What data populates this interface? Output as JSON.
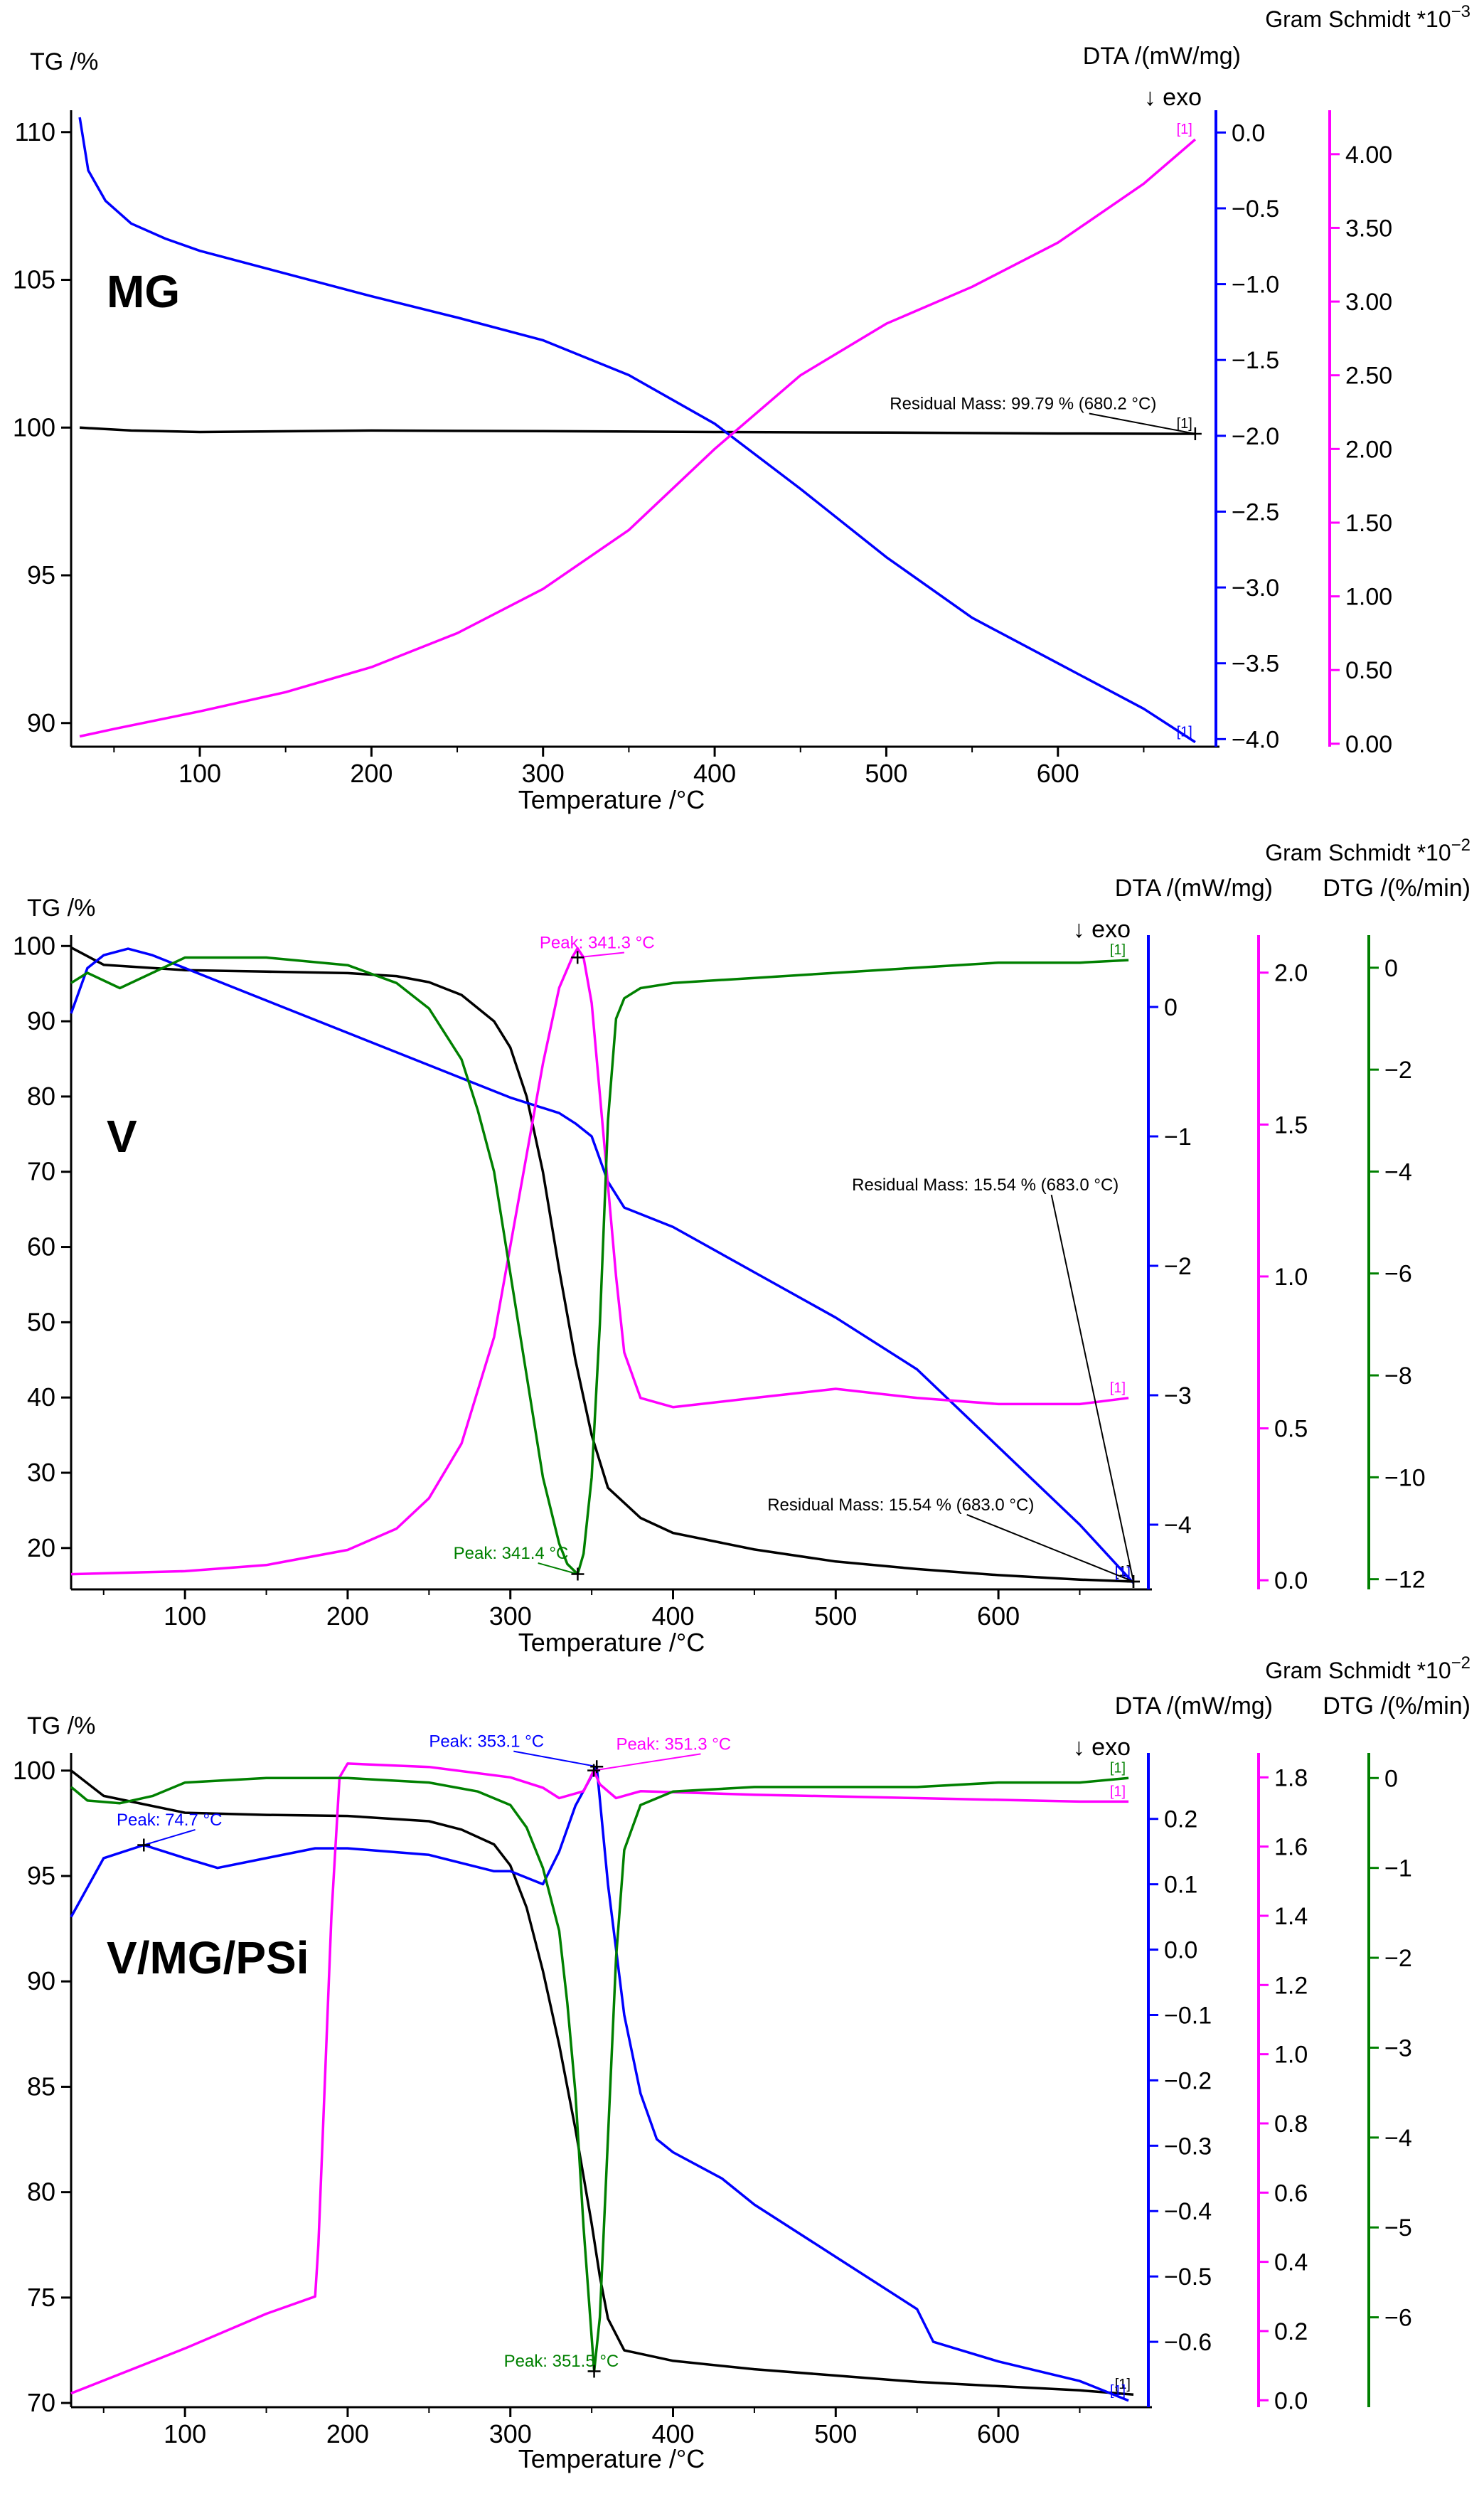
{
  "chart_data": [
    {
      "type": "line",
      "name": "MG",
      "sample_label": "MG",
      "xlabel": "Temperature /°C",
      "xlim": [
        25,
        690
      ],
      "xticks": [
        100,
        200,
        300,
        400,
        500,
        600
      ],
      "gs_header": "Gram Schmidt *10",
      "gs_exp": "−3",
      "exo_label": "↓ exo",
      "axes": [
        {
          "id": "tg",
          "label": "TG /%",
          "side": "left",
          "color": "#000000",
          "lim": [
            89.2,
            110.5
          ],
          "ticks": [
            90,
            95,
            100,
            105,
            110
          ],
          "decimals": 0
        },
        {
          "id": "dta",
          "label": "DTA /(mW/mg)",
          "side": "right",
          "color": "#0000ff",
          "lim": [
            -4.05,
            0.1
          ],
          "ticks": [
            0.0,
            -0.5,
            -1.0,
            -1.5,
            -2.0,
            -2.5,
            -3.0,
            -3.5,
            -4.0
          ],
          "decimals": 1
        },
        {
          "id": "gs",
          "label": "",
          "side": "right",
          "color": "#ff00ff",
          "lim": [
            -0.02,
            4.25
          ],
          "ticks": [
            0,
            0.5,
            1.0,
            1.5,
            2.0,
            2.5,
            3.0,
            3.5,
            4.0
          ],
          "decimals": 2
        }
      ],
      "series": [
        {
          "name": "TG",
          "axis": "tg",
          "color": "#000000",
          "x": [
            30,
            60,
            100,
            200,
            300,
            400,
            500,
            600,
            680
          ],
          "y": [
            100.0,
            99.9,
            99.85,
            99.9,
            99.88,
            99.85,
            99.83,
            99.8,
            99.79
          ]
        },
        {
          "name": "DTA",
          "axis": "dta",
          "color": "#0000ff",
          "x": [
            30,
            35,
            45,
            60,
            80,
            100,
            150,
            200,
            250,
            300,
            350,
            400,
            450,
            500,
            550,
            600,
            650,
            680
          ],
          "y": [
            0.1,
            -0.25,
            -0.45,
            -0.6,
            -0.7,
            -0.78,
            -0.93,
            -1.08,
            -1.22,
            -1.37,
            -1.6,
            -1.92,
            -2.35,
            -2.8,
            -3.2,
            -3.5,
            -3.8,
            -4.02
          ]
        },
        {
          "name": "Gram Schmidt",
          "axis": "gs",
          "color": "#ff00ff",
          "x": [
            30,
            50,
            100,
            150,
            200,
            250,
            300,
            350,
            400,
            450,
            500,
            550,
            600,
            650,
            680
          ],
          "y": [
            0.05,
            0.1,
            0.22,
            0.35,
            0.52,
            0.75,
            1.05,
            1.45,
            2.0,
            2.5,
            2.85,
            3.1,
            3.4,
            3.8,
            4.1
          ]
        }
      ],
      "annotations": [
        {
          "text": "Residual Mass: 99.79 % (680.2 °C)",
          "color": "#000000",
          "x": 680,
          "axis": "tg",
          "y": 99.79,
          "tx": 502,
          "ty": 100.62
        }
      ]
    },
    {
      "type": "line",
      "name": "V",
      "sample_label": "V",
      "xlabel": "Temperature /°C",
      "xlim": [
        30,
        690
      ],
      "xticks": [
        100,
        200,
        300,
        400,
        500,
        600
      ],
      "gs_header": "Gram Schmidt *10",
      "gs_exp": "−2",
      "dtg_header": "DTG /(%/min)",
      "exo_label": "↓ exo",
      "axes": [
        {
          "id": "tg",
          "label": "TG /%",
          "side": "left",
          "color": "#000000",
          "lim": [
            14.5,
            100.5
          ],
          "ticks": [
            20,
            30,
            40,
            50,
            60,
            70,
            80,
            90,
            100
          ],
          "decimals": 0
        },
        {
          "id": "dta",
          "label": "DTA /(mW/mg)",
          "side": "right",
          "color": "#0000ff",
          "lim": [
            -4.5,
            0.5
          ],
          "ticks": [
            0,
            -1,
            -2,
            -3,
            -4
          ],
          "decimals": 0
        },
        {
          "id": "gs",
          "label": "",
          "side": "right",
          "color": "#ff00ff",
          "lim": [
            -0.03,
            2.1
          ],
          "ticks": [
            0,
            0.5,
            1.0,
            1.5,
            2.0
          ],
          "decimals": 1
        },
        {
          "id": "dtg",
          "label": "",
          "side": "right",
          "color": "#008000",
          "lim": [
            -12.2,
            0.5
          ],
          "ticks": [
            0,
            -2,
            -4,
            -6,
            -8,
            -10,
            -12
          ],
          "decimals": 0
        }
      ],
      "series": [
        {
          "name": "TG",
          "axis": "tg",
          "color": "#000000",
          "x": [
            30,
            50,
            100,
            150,
            200,
            230,
            250,
            270,
            290,
            300,
            310,
            320,
            330,
            340,
            350,
            360,
            380,
            400,
            450,
            500,
            550,
            600,
            650,
            683
          ],
          "y": [
            99.8,
            97.5,
            96.8,
            96.6,
            96.4,
            96.0,
            95.2,
            93.5,
            90.0,
            86.5,
            80.0,
            70.0,
            57.0,
            45.0,
            35.0,
            28.0,
            24.0,
            22.0,
            19.8,
            18.2,
            17.2,
            16.4,
            15.8,
            15.54
          ]
        },
        {
          "name": "DTA",
          "axis": "dta",
          "color": "#0000ff",
          "x": [
            30,
            40,
            50,
            65,
            80,
            100,
            150,
            200,
            250,
            300,
            330,
            340,
            350,
            360,
            370,
            400,
            450,
            500,
            550,
            600,
            650,
            683
          ],
          "y": [
            -0.05,
            0.3,
            0.4,
            0.45,
            0.4,
            0.3,
            0.05,
            -0.2,
            -0.45,
            -0.7,
            -0.82,
            -0.9,
            -1.0,
            -1.35,
            -1.55,
            -1.7,
            -2.05,
            -2.4,
            -2.8,
            -3.4,
            -4.0,
            -4.45
          ]
        },
        {
          "name": "Gram Schmidt",
          "axis": "gs",
          "color": "#ff00ff",
          "x": [
            30,
            100,
            150,
            200,
            230,
            250,
            270,
            290,
            300,
            310,
            320,
            330,
            338,
            341.3,
            345,
            350,
            355,
            360,
            365,
            370,
            380,
            400,
            450,
            500,
            550,
            600,
            650,
            680
          ],
          "y": [
            0.02,
            0.03,
            0.05,
            0.1,
            0.17,
            0.27,
            0.45,
            0.8,
            1.1,
            1.4,
            1.7,
            1.95,
            2.05,
            2.08,
            2.05,
            1.9,
            1.6,
            1.3,
            1.0,
            0.75,
            0.6,
            0.57,
            0.6,
            0.63,
            0.6,
            0.58,
            0.58,
            0.6
          ]
        },
        {
          "name": "DTG",
          "axis": "dtg",
          "color": "#008000",
          "x": [
            30,
            40,
            60,
            100,
            150,
            200,
            230,
            250,
            270,
            280,
            290,
            300,
            310,
            320,
            330,
            335,
            341.4,
            345,
            350,
            355,
            360,
            365,
            370,
            380,
            400,
            450,
            500,
            550,
            600,
            650,
            680
          ],
          "y": [
            -0.3,
            -0.1,
            -0.4,
            0.2,
            0.2,
            0.05,
            -0.3,
            -0.8,
            -1.8,
            -2.8,
            -4.0,
            -6.0,
            -8.0,
            -10.0,
            -11.3,
            -11.7,
            -11.9,
            -11.5,
            -10.0,
            -7.0,
            -3.0,
            -1.0,
            -0.6,
            -0.4,
            -0.3,
            -0.2,
            -0.1,
            0.0,
            0.1,
            0.1,
            0.15
          ]
        }
      ],
      "annotations": [
        {
          "text": "Peak: 341.3 °C",
          "color": "#ff00ff",
          "x": 341.3,
          "axis": "gs",
          "y": 2.05,
          "tx": 318,
          "ty": 2.08
        },
        {
          "text": "Peak: 341.4 °C",
          "color": "#008000",
          "x": 341.4,
          "axis": "dtg",
          "y": -11.9,
          "tx": 265,
          "ty": -11.6
        },
        {
          "text": "Residual Mass: 15.54 % (683.0 °C)",
          "color": "#000000",
          "x": 683,
          "axis": "tg",
          "y": 15.54,
          "tx": 510,
          "ty": 67.5
        },
        {
          "text": "Residual Mass: 15.54 % (683.0 °C)",
          "color": "#000000",
          "x": 683,
          "axis": "tg",
          "y": 15.54,
          "tx": 458,
          "ty": 25.0
        }
      ]
    },
    {
      "type": "line",
      "name": "V/MG/PSi",
      "sample_label": "V/MG/PSi",
      "xlabel": "Temperature /°C",
      "xlim": [
        30,
        690
      ],
      "xticks": [
        100,
        200,
        300,
        400,
        500,
        600
      ],
      "gs_header": "Gram Schmidt *10",
      "gs_exp": "−2",
      "dtg_header": "DTG /(%/min)",
      "exo_label": "↓ exo",
      "axes": [
        {
          "id": "tg",
          "label": "TG /%",
          "side": "left",
          "color": "#000000",
          "lim": [
            69.8,
            100.5
          ],
          "ticks": [
            70,
            75,
            80,
            85,
            90,
            95,
            100
          ],
          "decimals": 0
        },
        {
          "id": "dta",
          "label": "DTA /(mW/mg)",
          "side": "right",
          "color": "#0000ff",
          "lim": [
            -0.7,
            0.29
          ],
          "ticks": [
            0.2,
            0.1,
            0.0,
            -0.1,
            -0.2,
            -0.3,
            -0.4,
            -0.5,
            -0.6
          ],
          "decimals": 1
        },
        {
          "id": "gs",
          "label": "",
          "side": "right",
          "color": "#ff00ff",
          "lim": [
            -0.02,
            1.85
          ],
          "ticks": [
            0,
            0.2,
            0.4,
            0.6,
            0.8,
            1.0,
            1.2,
            1.4,
            1.6,
            1.8
          ],
          "decimals": 1
        },
        {
          "id": "dtg",
          "label": "",
          "side": "right",
          "color": "#008000",
          "lim": [
            -7.0,
            0.2
          ],
          "ticks": [
            0,
            -1,
            -2,
            -3,
            -4,
            -5,
            -6
          ],
          "decimals": 0
        }
      ],
      "series": [
        {
          "name": "TG",
          "axis": "tg",
          "color": "#000000",
          "x": [
            30,
            50,
            100,
            150,
            200,
            250,
            270,
            290,
            300,
            310,
            320,
            330,
            340,
            350,
            355,
            360,
            370,
            400,
            450,
            500,
            550,
            600,
            650,
            683
          ],
          "y": [
            100.0,
            98.8,
            98.0,
            97.9,
            97.85,
            97.6,
            97.2,
            96.5,
            95.5,
            93.5,
            90.5,
            87.0,
            83.0,
            78.5,
            76.0,
            74.0,
            72.5,
            72.0,
            71.6,
            71.3,
            71.0,
            70.8,
            70.6,
            70.4
          ]
        },
        {
          "name": "DTA",
          "axis": "dta",
          "color": "#0000ff",
          "x": [
            30,
            50,
            74.7,
            100,
            120,
            150,
            180,
            200,
            250,
            290,
            300,
            320,
            330,
            340,
            353.1,
            360,
            370,
            380,
            390,
            400,
            430,
            450,
            500,
            550,
            560,
            600,
            650,
            680
          ],
          "y": [
            0.05,
            0.14,
            0.16,
            0.14,
            0.125,
            0.14,
            0.155,
            0.155,
            0.145,
            0.12,
            0.12,
            0.1,
            0.15,
            0.22,
            0.28,
            0.1,
            -0.1,
            -0.22,
            -0.29,
            -0.31,
            -0.35,
            -0.39,
            -0.47,
            -0.55,
            -0.6,
            -0.63,
            -0.66,
            -0.69
          ]
        },
        {
          "name": "Gram Schmidt",
          "axis": "gs",
          "color": "#ff00ff",
          "x": [
            30,
            100,
            150,
            180,
            182,
            190,
            195,
            200,
            250,
            300,
            320,
            330,
            345,
            351.3,
            355,
            365,
            380,
            450,
            550,
            650,
            680
          ],
          "y": [
            0.02,
            0.15,
            0.25,
            0.3,
            0.45,
            1.4,
            1.8,
            1.84,
            1.83,
            1.8,
            1.77,
            1.74,
            1.76,
            1.82,
            1.78,
            1.74,
            1.76,
            1.75,
            1.74,
            1.73,
            1.73
          ]
        },
        {
          "name": "DTG",
          "axis": "dtg",
          "color": "#008000",
          "x": [
            30,
            40,
            60,
            80,
            100,
            150,
            200,
            250,
            280,
            300,
            310,
            320,
            330,
            335,
            340,
            345,
            351.5,
            355,
            360,
            365,
            370,
            380,
            400,
            450,
            500,
            550,
            600,
            650,
            680
          ],
          "y": [
            -0.1,
            -0.25,
            -0.28,
            -0.2,
            -0.05,
            0.0,
            0.0,
            -0.05,
            -0.15,
            -0.3,
            -0.55,
            -1.0,
            -1.7,
            -2.5,
            -3.5,
            -5.0,
            -6.6,
            -6.0,
            -4.0,
            -2.0,
            -0.8,
            -0.3,
            -0.15,
            -0.1,
            -0.1,
            -0.1,
            -0.05,
            -0.05,
            0.0
          ]
        }
      ],
      "annotations": [
        {
          "text": "Peak: 74.7 °C",
          "color": "#0000ff",
          "x": 74.7,
          "axis": "dta",
          "y": 0.16,
          "tx": 58,
          "ty": 0.19
        },
        {
          "text": "Peak: 353.1 °C",
          "color": "#0000ff",
          "x": 353.1,
          "axis": "dta",
          "y": 0.28,
          "tx": 250,
          "ty": 0.31
        },
        {
          "text": "Peak: 351.3 °C",
          "color": "#ff00ff",
          "x": 351.3,
          "axis": "gs",
          "y": 1.82,
          "tx": 365,
          "ty": 1.88
        },
        {
          "text": "Peak: 351.5 °C",
          "color": "#008000",
          "x": 351.5,
          "axis": "dtg",
          "y": -6.6,
          "tx": 296,
          "ty": -6.55
        }
      ]
    }
  ]
}
